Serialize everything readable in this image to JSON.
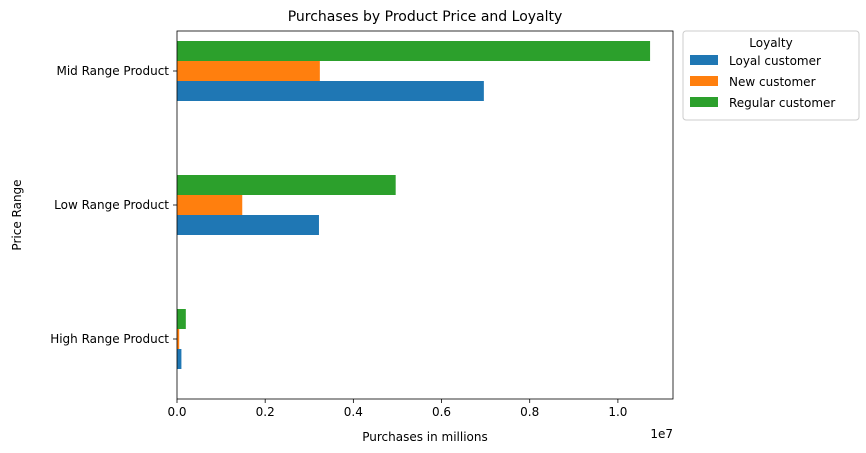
{
  "chart_data": {
    "type": "bar",
    "orientation": "horizontal",
    "title": "Purchases by Product Price and Loyalty",
    "xlabel": "Purchases in millions",
    "ylabel": "Price Range",
    "x_offset_label": "1e7",
    "xlim": [
      0,
      11250000
    ],
    "xticks": [
      {
        "value": 0,
        "label": "0.0"
      },
      {
        "value": 2000000,
        "label": "0.2"
      },
      {
        "value": 4000000,
        "label": "0.4"
      },
      {
        "value": 6000000,
        "label": "0.6"
      },
      {
        "value": 8000000,
        "label": "0.8"
      },
      {
        "value": 10000000,
        "label": "1.0"
      }
    ],
    "categories": [
      "High Range Product",
      "Low Range Product",
      "Mid Range Product"
    ],
    "series": [
      {
        "name": "Loyal customer",
        "color": "#1f77b4",
        "values": [
          100000,
          3220000,
          6960000
        ]
      },
      {
        "name": "New customer",
        "color": "#ff7f0e",
        "values": [
          50000,
          1480000,
          3240000
        ]
      },
      {
        "name": "Regular customer",
        "color": "#2ca02c",
        "values": [
          200000,
          4960000,
          10730000
        ]
      }
    ],
    "legend": {
      "title": "Loyalty",
      "placement": "outside-right-top"
    },
    "grid": false
  }
}
